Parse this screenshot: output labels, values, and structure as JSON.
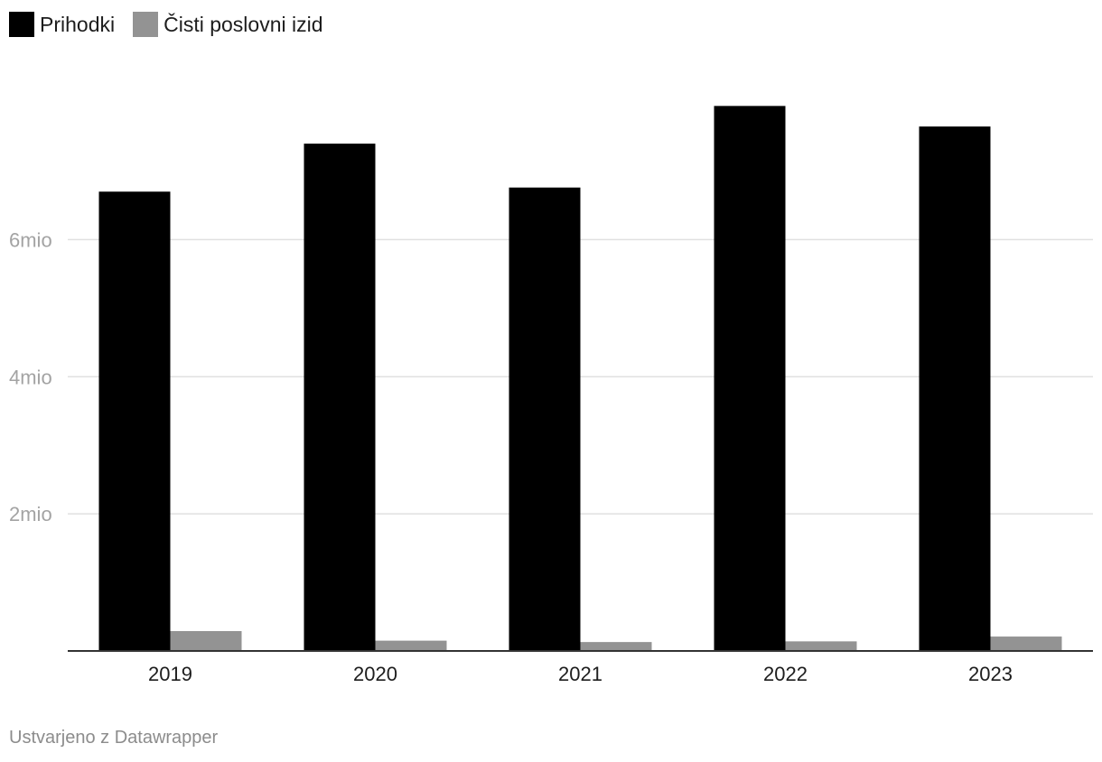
{
  "chart_data": {
    "type": "bar",
    "categories": [
      "2019",
      "2020",
      "2021",
      "2022",
      "2023"
    ],
    "series": [
      {
        "name": "Prihodki",
        "color": "#000000",
        "values": [
          6700000,
          7400000,
          6760000,
          7950000,
          7650000
        ]
      },
      {
        "name": "Čisti poslovni izid",
        "color": "#939393",
        "values": [
          290000,
          150000,
          130000,
          140000,
          210000
        ]
      }
    ],
    "y_ticks": [
      {
        "value": 2000000,
        "label": "2mio"
      },
      {
        "value": 4000000,
        "label": "4mio"
      },
      {
        "value": 6000000,
        "label": "6mio"
      }
    ],
    "ylim": [
      0,
      8600000
    ],
    "grid": true,
    "legend_position": "top-left"
  },
  "footer": {
    "credit": "Ustvarjeno z Datawrapper"
  }
}
